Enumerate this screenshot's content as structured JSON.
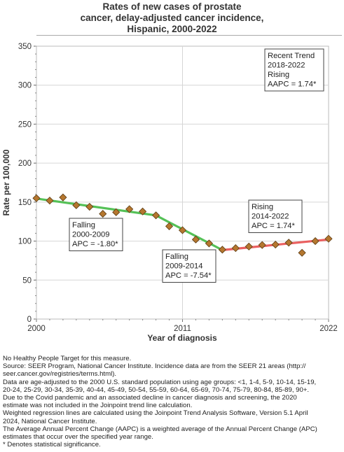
{
  "title_lines": [
    "Rates of new cases of prostate",
    "cancer, delay-adjusted cancer incidence,",
    "Hispanic,  2000-2022"
  ],
  "chart_data": {
    "type": "line",
    "title": "Rates of new cases of prostate cancer, delay-adjusted cancer incidence, Hispanic, 2000-2022",
    "xlabel": "Year of diagnosis",
    "ylabel": "Rate per 100,000",
    "xlim": [
      2000,
      2022
    ],
    "ylim": [
      0,
      350
    ],
    "x_ticks": [
      2000,
      2011,
      2022
    ],
    "y_ticks": [
      0,
      50,
      100,
      150,
      200,
      250,
      300,
      350
    ],
    "grid": true,
    "observed": {
      "x": [
        2000,
        2001,
        2002,
        2003,
        2004,
        2005,
        2006,
        2007,
        2008,
        2009,
        2010,
        2011,
        2012,
        2013,
        2014,
        2015,
        2016,
        2017,
        2018,
        2019,
        2021,
        2022
      ],
      "y": [
        155,
        152,
        156,
        146,
        144,
        135,
        137,
        141,
        138,
        133,
        119,
        114,
        102,
        97,
        89,
        91,
        93,
        95,
        95.5,
        98,
        100,
        103
      ]
    },
    "excluded_point": {
      "x": 2020,
      "y": 85
    },
    "trend_segments": [
      {
        "start": 2000,
        "end": 2009,
        "y_start": 154.5,
        "y_end": 133,
        "color": "#55c157"
      },
      {
        "start": 2009,
        "end": 2014,
        "y_start": 133,
        "y_end": 88.5,
        "color": "#55c157"
      },
      {
        "start": 2014,
        "end": 2022,
        "y_start": 88.5,
        "y_end": 102,
        "color": "#ea6060"
      }
    ],
    "annotations": [
      {
        "lines": [
          "Falling",
          "2000-2009",
          "APC = -1.80*"
        ]
      },
      {
        "lines": [
          "Falling",
          "2009-2014",
          "APC = -7.54*"
        ]
      },
      {
        "lines": [
          "Rising",
          "2014-2022",
          "APC =  1.74*"
        ]
      },
      {
        "lines": [
          "Recent Trend",
          "2018-2022",
          "Rising",
          "AAPC =  1.74*"
        ]
      }
    ],
    "marker_color": "#b5772f"
  },
  "notes": [
    "No Healthy People Target for this measure.",
    "Source: SEER Program, National Cancer Institute. Incidence data are from the SEER 21 areas (http://",
    "seer.cancer.gov/registries/terms.html).",
    "Data are age-adjusted to the 2000 U.S. standard population using age groups: <1, 1-4, 5-9, 10-14, 15-19,",
    "20-24, 25-29, 30-34, 35-39, 40-44, 45-49, 50-54, 55-59, 60-64, 65-69, 70-74, 75-79, 80-84, 85-89, 90+.",
    "Due to the Covid pandemic and an associated decline in cancer diagnosis and screening, the 2020",
    "estimate was not included in the Joinpoint trend line calculation.",
    "Weighted regression lines are calculated using the Joinpoint Trend Analysis Software, Version 5.1 April",
    "2024, National Cancer Institute.",
    "The Average Annual Percent Change (AAPC) is a weighted average of the Annual Percent Change (APC)",
    "estimates that occur over the specified year range.",
    "* Denotes statistical significance."
  ]
}
